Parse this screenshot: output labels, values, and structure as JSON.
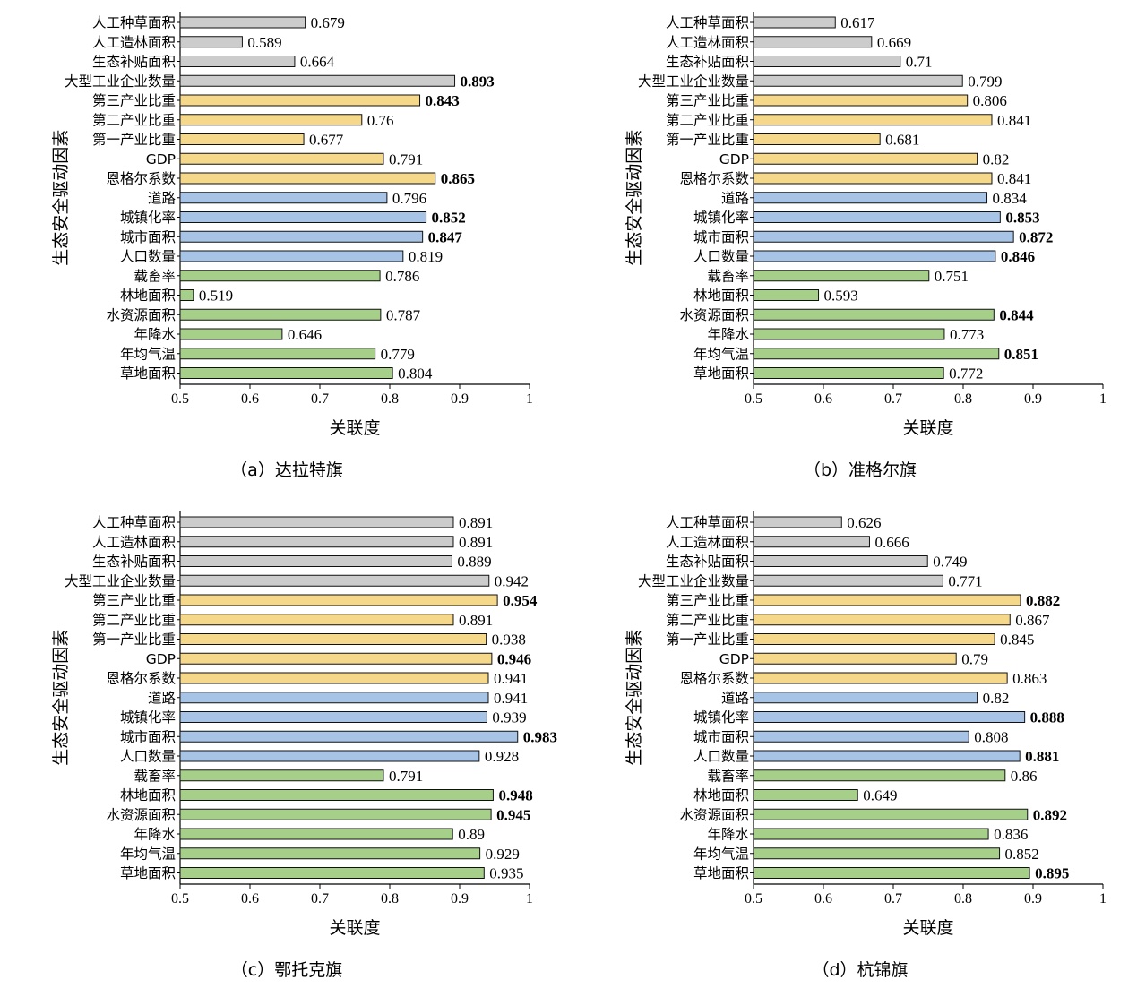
{
  "colors": {
    "gray": "#cccccc",
    "yellow": "#f6d88a",
    "blue": "#a7c3e6",
    "green": "#a6cf8a",
    "outline": "#111111"
  },
  "chart_data": [
    {
      "type": "bar",
      "orientation": "horizontal",
      "caption": "（a）达拉特旗",
      "ylabel": "生态安全驱动因素",
      "xlabel": "关联度",
      "xlim": [
        0.5,
        1
      ],
      "xticks": [
        "0.5",
        "0.6",
        "0.7",
        "0.8",
        "0.9",
        "1"
      ],
      "categories": [
        "人工种草面积",
        "人工造林面积",
        "生态补贴面积",
        "大型工业企业数量",
        "第三产业比重",
        "第二产业比重",
        "第一产业比重",
        "GDP",
        "恩格尔系数",
        "道路",
        "城镇化率",
        "城市面积",
        "人口数量",
        "载畜率",
        "林地面积",
        "水资源面积",
        "年降水",
        "年均气温",
        "草地面积"
      ],
      "values": [
        0.679,
        0.589,
        0.664,
        0.893,
        0.843,
        0.76,
        0.677,
        0.791,
        0.865,
        0.796,
        0.852,
        0.847,
        0.819,
        0.786,
        0.519,
        0.787,
        0.646,
        0.779,
        0.804
      ],
      "value_labels": [
        "0.679",
        "0.589",
        "0.664",
        "0.893",
        "0.843",
        "0.76",
        "0.677",
        "0.791",
        "0.865",
        "0.796",
        "0.852",
        "0.847",
        "0.819",
        "0.786",
        "0.519",
        "0.787",
        "0.646",
        "0.779",
        "0.804"
      ],
      "bold": [
        false,
        false,
        false,
        true,
        true,
        false,
        false,
        false,
        true,
        false,
        true,
        true,
        false,
        false,
        false,
        false,
        false,
        false,
        false
      ],
      "groups": [
        "gray",
        "gray",
        "gray",
        "gray",
        "yellow",
        "yellow",
        "yellow",
        "yellow",
        "yellow",
        "blue",
        "blue",
        "blue",
        "blue",
        "green",
        "green",
        "green",
        "green",
        "green",
        "green"
      ]
    },
    {
      "type": "bar",
      "orientation": "horizontal",
      "caption": "（b）准格尔旗",
      "ylabel": "生态安全驱动因素",
      "xlabel": "关联度",
      "xlim": [
        0.5,
        1
      ],
      "xticks": [
        "0.5",
        "0.6",
        "0.7",
        "0.8",
        "0.9",
        "1"
      ],
      "categories": [
        "人工种草面积",
        "人工造林面积",
        "生态补贴面积",
        "大型工业企业数量",
        "第三产业比重",
        "第二产业比重",
        "第一产业比重",
        "GDP",
        "恩格尔系数",
        "道路",
        "城镇化率",
        "城市面积",
        "人口数量",
        "载畜率",
        "林地面积",
        "水资源面积",
        "年降水",
        "年均气温",
        "草地面积"
      ],
      "values": [
        0.617,
        0.669,
        0.71,
        0.799,
        0.806,
        0.841,
        0.681,
        0.82,
        0.841,
        0.834,
        0.853,
        0.872,
        0.846,
        0.751,
        0.593,
        0.844,
        0.773,
        0.851,
        0.772
      ],
      "value_labels": [
        "0.617",
        "0.669",
        "0.71",
        "0.799",
        "0.806",
        "0.841",
        "0.681",
        "0.82",
        "0.841",
        "0.834",
        "0.853",
        "0.872",
        "0.846",
        "0.751",
        "0.593",
        "0.844",
        "0.773",
        "0.851",
        "0.772"
      ],
      "bold": [
        false,
        false,
        false,
        false,
        false,
        false,
        false,
        false,
        false,
        false,
        true,
        true,
        true,
        false,
        false,
        true,
        false,
        true,
        false
      ],
      "groups": [
        "gray",
        "gray",
        "gray",
        "gray",
        "yellow",
        "yellow",
        "yellow",
        "yellow",
        "yellow",
        "blue",
        "blue",
        "blue",
        "blue",
        "green",
        "green",
        "green",
        "green",
        "green",
        "green"
      ]
    },
    {
      "type": "bar",
      "orientation": "horizontal",
      "caption": "（c）鄂托克旗",
      "ylabel": "生态安全驱动因素",
      "xlabel": "关联度",
      "xlim": [
        0.5,
        1
      ],
      "xticks": [
        "0.5",
        "0.6",
        "0.7",
        "0.8",
        "0.9",
        "1"
      ],
      "categories": [
        "人工种草面积",
        "人工造林面积",
        "生态补贴面积",
        "大型工业企业数量",
        "第三产业比重",
        "第二产业比重",
        "第一产业比重",
        "GDP",
        "恩格尔系数",
        "道路",
        "城镇化率",
        "城市面积",
        "人口数量",
        "载畜率",
        "林地面积",
        "水资源面积",
        "年降水",
        "年均气温",
        "草地面积"
      ],
      "values": [
        0.891,
        0.891,
        0.889,
        0.942,
        0.954,
        0.891,
        0.938,
        0.946,
        0.941,
        0.941,
        0.939,
        0.983,
        0.928,
        0.791,
        0.948,
        0.945,
        0.89,
        0.929,
        0.935
      ],
      "value_labels": [
        "0.891",
        "0.891",
        "0.889",
        "0.942",
        "0.954",
        "0.891",
        "0.938",
        "0.946",
        "0.941",
        "0.941",
        "0.939",
        "0.983",
        "0.928",
        "0.791",
        "0.948",
        "0.945",
        "0.89",
        "0.929",
        "0.935"
      ],
      "bold": [
        false,
        false,
        false,
        false,
        true,
        false,
        false,
        true,
        false,
        false,
        false,
        true,
        false,
        false,
        true,
        true,
        false,
        false,
        false
      ],
      "groups": [
        "gray",
        "gray",
        "gray",
        "gray",
        "yellow",
        "yellow",
        "yellow",
        "yellow",
        "yellow",
        "blue",
        "blue",
        "blue",
        "blue",
        "green",
        "green",
        "green",
        "green",
        "green",
        "green"
      ]
    },
    {
      "type": "bar",
      "orientation": "horizontal",
      "caption": "（d）杭锦旗",
      "ylabel": "生态安全驱动因素",
      "xlabel": "关联度",
      "xlim": [
        0.5,
        1
      ],
      "xticks": [
        "0.5",
        "0.6",
        "0.7",
        "0.8",
        "0.9",
        "1"
      ],
      "categories": [
        "人工种草面积",
        "人工造林面积",
        "生态补贴面积",
        "大型工业企业数量",
        "第三产业比重",
        "第二产业比重",
        "第一产业比重",
        "GDP",
        "恩格尔系数",
        "道路",
        "城镇化率",
        "城市面积",
        "人口数量",
        "载畜率",
        "林地面积",
        "水资源面积",
        "年降水",
        "年均气温",
        "草地面积"
      ],
      "values": [
        0.626,
        0.666,
        0.749,
        0.771,
        0.882,
        0.867,
        0.845,
        0.79,
        0.863,
        0.82,
        0.888,
        0.808,
        0.881,
        0.86,
        0.649,
        0.892,
        0.836,
        0.852,
        0.895
      ],
      "value_labels": [
        "0.626",
        "0.666",
        "0.749",
        "0.771",
        "0.882",
        "0.867",
        "0.845",
        "0.79",
        "0.863",
        "0.82",
        "0.888",
        "0.808",
        "0.881",
        "0.86",
        "0.649",
        "0.892",
        "0.836",
        "0.852",
        "0.895"
      ],
      "bold": [
        false,
        false,
        false,
        false,
        true,
        false,
        false,
        false,
        false,
        false,
        true,
        false,
        true,
        false,
        false,
        true,
        false,
        false,
        true
      ],
      "groups": [
        "gray",
        "gray",
        "gray",
        "gray",
        "yellow",
        "yellow",
        "yellow",
        "yellow",
        "yellow",
        "blue",
        "blue",
        "blue",
        "blue",
        "green",
        "green",
        "green",
        "green",
        "green",
        "green"
      ]
    }
  ]
}
